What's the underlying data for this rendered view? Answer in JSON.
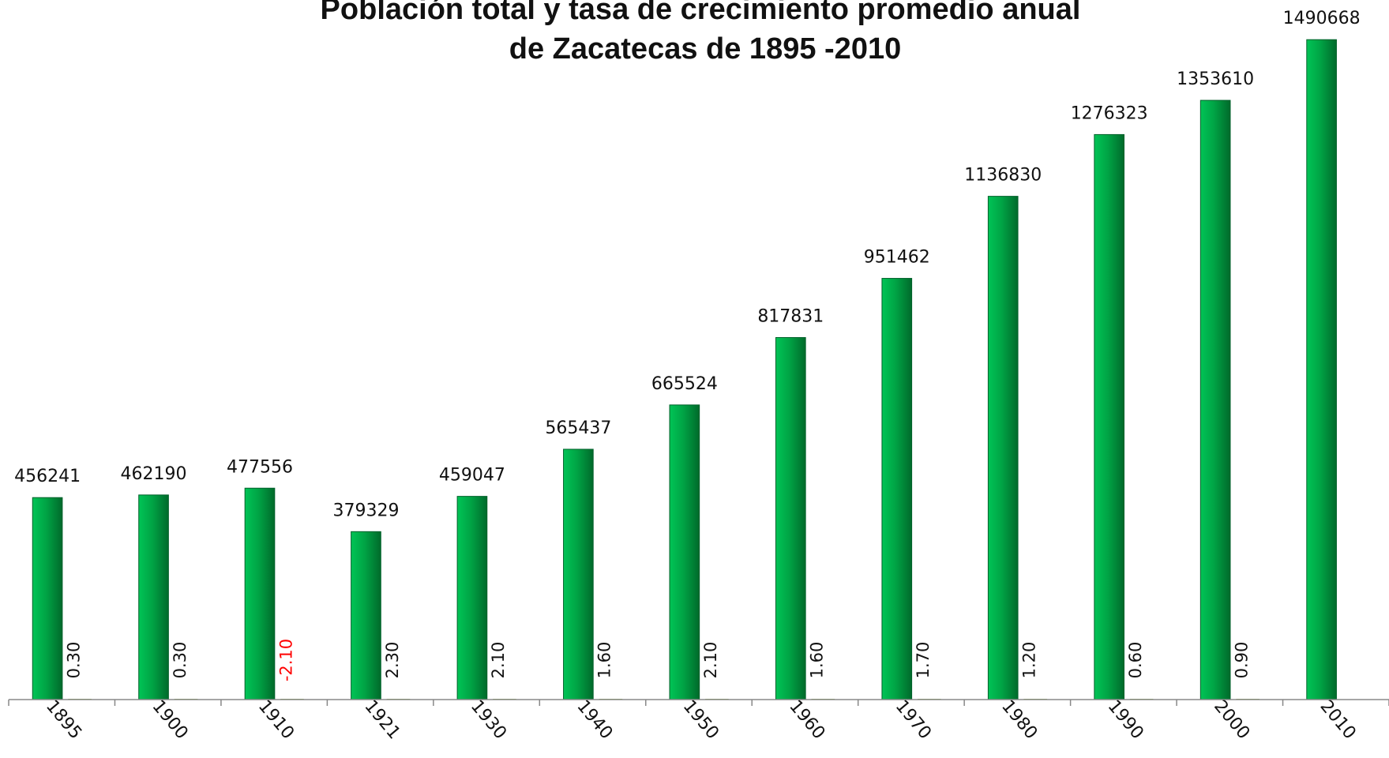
{
  "chart_data": {
    "type": "bar",
    "title": [
      "Población total y tasa de crecimiento promedio anual",
      "de Zacatecas de 1895 -2010"
    ],
    "categories": [
      "1895",
      "1900",
      "1910",
      "1921",
      "1930",
      "1940",
      "1950",
      "1960",
      "1970",
      "1980",
      "1990",
      "2000",
      "2010"
    ],
    "series": [
      {
        "color": "#00a445",
        "values": [
          456241,
          462190,
          477556,
          379329,
          459047,
          565437,
          665524,
          817831,
          951462,
          1136830,
          1276323,
          1353610,
          1490668
        ]
      },
      {
        "color": "#9bbb59",
        "values": [
          0.3,
          0.3,
          -2.1,
          2.3,
          2.1,
          1.6,
          2.1,
          1.6,
          1.7,
          1.2,
          0.6,
          0.9,
          null
        ],
        "value_labels": [
          "0.30",
          "0.30",
          "-2.10",
          "2.30",
          "2.10",
          "1.60",
          "2.10",
          "1.60",
          "1.70",
          "1.20",
          "0.60",
          "0.90",
          null
        ]
      }
    ],
    "ylim": [
      0,
      1500000
    ],
    "negative_label_color": "#ff0000",
    "grid": false
  }
}
